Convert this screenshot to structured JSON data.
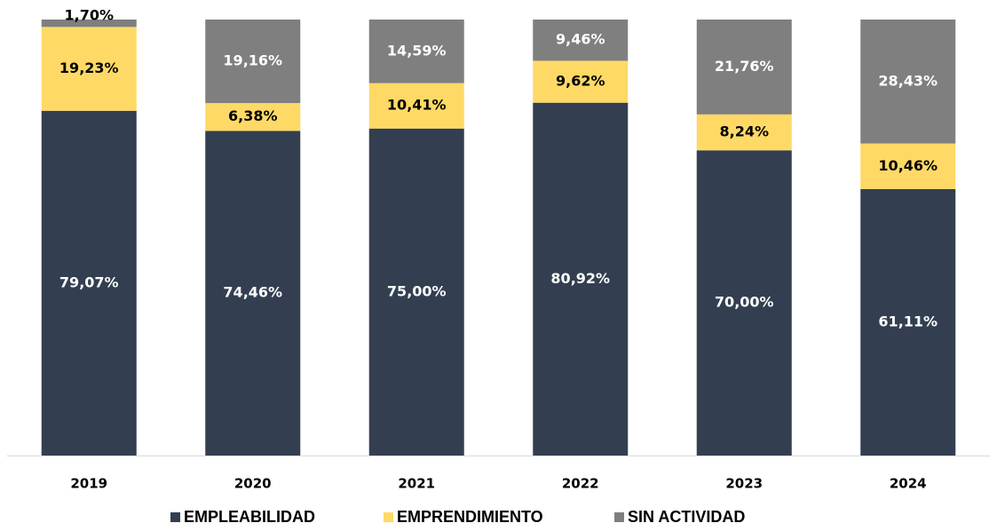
{
  "chart_data": {
    "type": "stacked_bar",
    "categories": [
      "2019",
      "2020",
      "2021",
      "2022",
      "2023",
      "2024"
    ],
    "series": [
      {
        "name": "EMPLEABILIDAD",
        "color": "#333f50",
        "values": [
          79.07,
          74.46,
          75.0,
          80.92,
          70.0,
          61.11
        ],
        "value_labels": [
          "79,07%",
          "74,46%",
          "75,00%",
          "80,92%",
          "70,00%",
          "61,11%"
        ]
      },
      {
        "name": "EMPRENDIMIENTO",
        "color": "#ffd966",
        "values": [
          19.23,
          6.38,
          10.41,
          9.62,
          8.24,
          10.46
        ],
        "value_labels": [
          "19,23%",
          "6,38%",
          "10,41%",
          "9,62%",
          "8,24%",
          "10,46%"
        ]
      },
      {
        "name": "SIN ACTIVIDAD",
        "color": "#7f7f7f",
        "values": [
          1.7,
          19.16,
          14.59,
          9.46,
          21.76,
          28.43
        ],
        "value_labels": [
          "1,70%",
          "19,16%",
          "14,59%",
          "9,46%",
          "21,76%",
          "28,43%"
        ]
      }
    ],
    "ylim": [
      0,
      100
    ],
    "legend": "bottom"
  }
}
